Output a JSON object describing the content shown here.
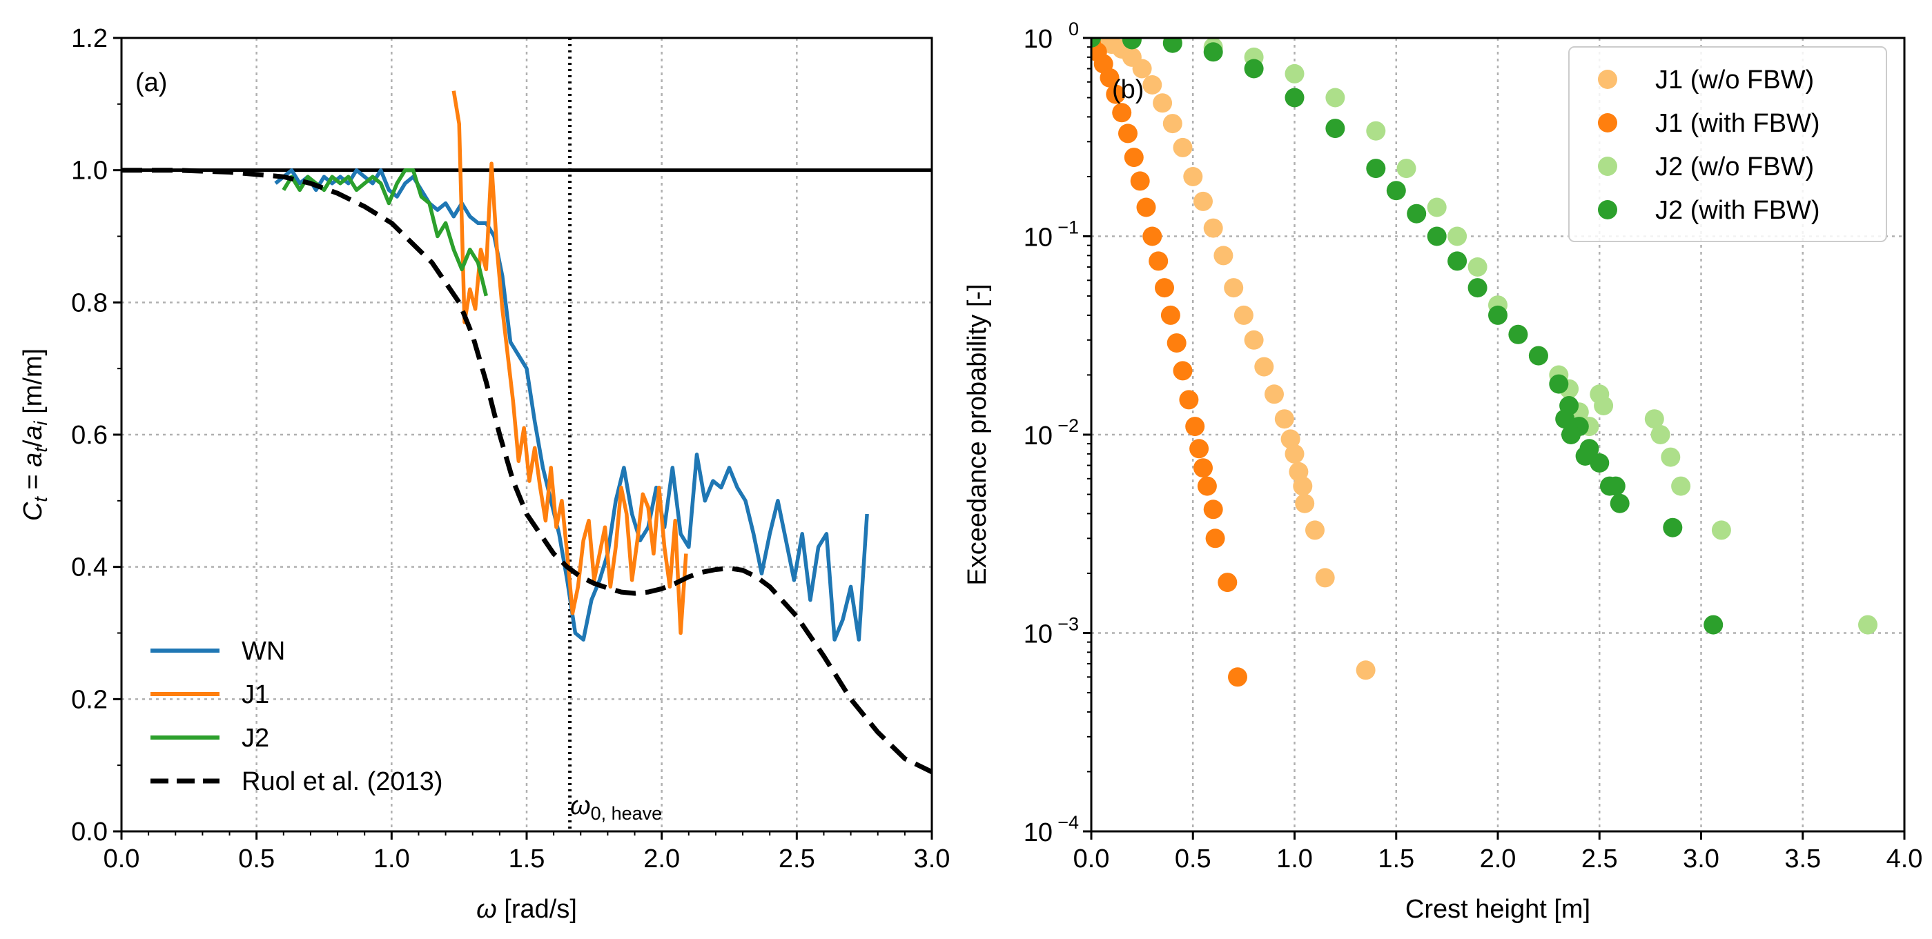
{
  "chart_data": [
    {
      "type": "line",
      "panel_label": "(a)",
      "xlabel": "ω [rad/s]",
      "ylabel": "C_t = a_t/a_i [m/m]",
      "xlim": [
        0.0,
        3.0
      ],
      "ylim": [
        0.0,
        1.2
      ],
      "xticks": [
        0.0,
        0.5,
        1.0,
        1.5,
        2.0,
        2.5,
        3.0
      ],
      "xtick_labels": [
        "0.0",
        "0.5",
        "1.0",
        "1.5",
        "2.0",
        "2.5",
        "3.0"
      ],
      "yticks": [
        0.0,
        0.2,
        0.4,
        0.6,
        0.8,
        1.0,
        1.2
      ],
      "ytick_labels": [
        "0.0",
        "0.2",
        "0.4",
        "0.6",
        "0.8",
        "1.0",
        "1.2"
      ],
      "grid": true,
      "legend_position": "lower-left",
      "reference_lines": [
        {
          "orientation": "horizontal",
          "value": 1.0,
          "style": "solid"
        },
        {
          "orientation": "vertical",
          "value": 1.66,
          "style": "dotted",
          "label": "ω0, heave"
        }
      ],
      "series": [
        {
          "name": "WN",
          "color": "#1f77b4",
          "style": "solid",
          "x": [
            0.57,
            0.6,
            0.63,
            0.66,
            0.69,
            0.72,
            0.75,
            0.78,
            0.81,
            0.84,
            0.87,
            0.9,
            0.93,
            0.96,
            0.99,
            1.02,
            1.05,
            1.08,
            1.11,
            1.14,
            1.17,
            1.2,
            1.23,
            1.26,
            1.29,
            1.32,
            1.35,
            1.38,
            1.41,
            1.44,
            1.47,
            1.5,
            1.53,
            1.56,
            1.59,
            1.62,
            1.65,
            1.68,
            1.71,
            1.74,
            1.77,
            1.8,
            1.83,
            1.86,
            1.89,
            1.92,
            1.95,
            1.98,
            2.01,
            2.04,
            2.07,
            2.1,
            2.13,
            2.16,
            2.19,
            2.22,
            2.25,
            2.28,
            2.31,
            2.34,
            2.37,
            2.4,
            2.43,
            2.46,
            2.49,
            2.52,
            2.55,
            2.58,
            2.61,
            2.64,
            2.67,
            2.7,
            2.73,
            2.76
          ],
          "y": [
            0.98,
            0.99,
            1.0,
            0.98,
            0.99,
            0.97,
            0.99,
            0.98,
            0.99,
            0.98,
            1.0,
            0.99,
            0.98,
            1.0,
            0.97,
            0.96,
            0.98,
            0.99,
            0.97,
            0.95,
            0.94,
            0.95,
            0.93,
            0.95,
            0.93,
            0.92,
            0.92,
            0.9,
            0.84,
            0.74,
            0.72,
            0.7,
            0.62,
            0.55,
            0.5,
            0.45,
            0.38,
            0.3,
            0.29,
            0.35,
            0.38,
            0.42,
            0.5,
            0.55,
            0.48,
            0.44,
            0.46,
            0.52,
            0.46,
            0.55,
            0.45,
            0.43,
            0.57,
            0.5,
            0.53,
            0.52,
            0.55,
            0.52,
            0.5,
            0.45,
            0.39,
            0.45,
            0.5,
            0.44,
            0.38,
            0.45,
            0.35,
            0.43,
            0.45,
            0.29,
            0.32,
            0.37,
            0.29,
            0.48
          ]
        },
        {
          "name": "J1",
          "color": "#ff7f0e",
          "style": "solid",
          "x": [
            1.23,
            1.25,
            1.27,
            1.29,
            1.31,
            1.33,
            1.35,
            1.37,
            1.39,
            1.41,
            1.43,
            1.45,
            1.47,
            1.49,
            1.51,
            1.53,
            1.55,
            1.57,
            1.59,
            1.61,
            1.63,
            1.65,
            1.67,
            1.69,
            1.71,
            1.73,
            1.75,
            1.77,
            1.79,
            1.81,
            1.83,
            1.85,
            1.87,
            1.89,
            1.91,
            1.93,
            1.95,
            1.97,
            1.99,
            2.01,
            2.03,
            2.05,
            2.07,
            2.09
          ],
          "y": [
            1.12,
            1.07,
            0.77,
            0.82,
            0.79,
            0.88,
            0.85,
            1.01,
            0.88,
            0.79,
            0.72,
            0.65,
            0.56,
            0.61,
            0.53,
            0.58,
            0.52,
            0.47,
            0.55,
            0.46,
            0.5,
            0.42,
            0.33,
            0.37,
            0.44,
            0.47,
            0.38,
            0.42,
            0.46,
            0.37,
            0.43,
            0.52,
            0.48,
            0.38,
            0.44,
            0.51,
            0.49,
            0.42,
            0.52,
            0.43,
            0.37,
            0.47,
            0.3,
            0.42
          ]
        },
        {
          "name": "J2",
          "color": "#2ca02c",
          "style": "solid",
          "x": [
            0.6,
            0.63,
            0.66,
            0.69,
            0.72,
            0.75,
            0.78,
            0.81,
            0.84,
            0.87,
            0.9,
            0.93,
            0.96,
            0.99,
            1.02,
            1.05,
            1.08,
            1.11,
            1.14,
            1.17,
            1.2,
            1.23,
            1.26,
            1.29,
            1.32,
            1.35
          ],
          "y": [
            0.97,
            0.99,
            0.97,
            0.99,
            0.98,
            0.97,
            0.99,
            0.98,
            0.99,
            0.97,
            0.98,
            0.99,
            0.98,
            0.95,
            0.98,
            1.0,
            1.0,
            0.96,
            0.95,
            0.9,
            0.92,
            0.88,
            0.85,
            0.88,
            0.86,
            0.81
          ]
        },
        {
          "name": "Ruol et al. (2013)",
          "color": "#000000",
          "style": "dashed",
          "x": [
            0.0,
            0.2,
            0.4,
            0.6,
            0.7,
            0.8,
            0.9,
            1.0,
            1.05,
            1.1,
            1.15,
            1.2,
            1.25,
            1.3,
            1.35,
            1.4,
            1.45,
            1.5,
            1.55,
            1.6,
            1.65,
            1.7,
            1.75,
            1.8,
            1.85,
            1.9,
            1.95,
            2.0,
            2.05,
            2.1,
            2.15,
            2.2,
            2.25,
            2.3,
            2.35,
            2.4,
            2.5,
            2.6,
            2.7,
            2.8,
            2.9,
            3.0
          ],
          "y": [
            1.0,
            1.0,
            0.997,
            0.99,
            0.98,
            0.965,
            0.945,
            0.92,
            0.9,
            0.88,
            0.86,
            0.83,
            0.8,
            0.75,
            0.68,
            0.6,
            0.53,
            0.48,
            0.45,
            0.42,
            0.4,
            0.385,
            0.375,
            0.368,
            0.362,
            0.36,
            0.362,
            0.367,
            0.375,
            0.385,
            0.392,
            0.396,
            0.398,
            0.395,
            0.385,
            0.37,
            0.325,
            0.265,
            0.2,
            0.15,
            0.11,
            0.09
          ]
        }
      ]
    },
    {
      "type": "scatter",
      "panel_label": "(b)",
      "xlabel": "Crest height [m]",
      "ylabel": "Exceedance probability [-]",
      "xscale": "linear",
      "yscale": "log",
      "xlim": [
        0.0,
        4.0
      ],
      "ylim": [
        0.0001,
        1
      ],
      "xticks": [
        0.0,
        0.5,
        1.0,
        1.5,
        2.0,
        2.5,
        3.0,
        3.5,
        4.0
      ],
      "xtick_labels": [
        "0.0",
        "0.5",
        "1.0",
        "1.5",
        "2.0",
        "2.5",
        "3.0",
        "3.5",
        "4.0"
      ],
      "ytick_exponents": [
        -4,
        -3,
        -2,
        -1,
        0
      ],
      "ytick_labels": [
        "10",
        "10",
        "10",
        "10",
        "10"
      ],
      "ytick_label_exponents": [
        "−4",
        "−3",
        "−2",
        "−1",
        "0"
      ],
      "grid": true,
      "legend_position": "top-right",
      "series": [
        {
          "name": "J1 (w/o FBW)",
          "color": "#fdbf6f",
          "points": [
            [
              0.0,
              1.0
            ],
            [
              0.05,
              0.97
            ],
            [
              0.1,
              0.93
            ],
            [
              0.15,
              0.88
            ],
            [
              0.2,
              0.8
            ],
            [
              0.25,
              0.7
            ],
            [
              0.3,
              0.58
            ],
            [
              0.35,
              0.47
            ],
            [
              0.4,
              0.37
            ],
            [
              0.45,
              0.28
            ],
            [
              0.5,
              0.2
            ],
            [
              0.55,
              0.15
            ],
            [
              0.6,
              0.11
            ],
            [
              0.65,
              0.08
            ],
            [
              0.7,
              0.055
            ],
            [
              0.75,
              0.04
            ],
            [
              0.8,
              0.03
            ],
            [
              0.85,
              0.022
            ],
            [
              0.9,
              0.016
            ],
            [
              0.95,
              0.012
            ],
            [
              0.98,
              0.0095
            ],
            [
              1.0,
              0.008
            ],
            [
              1.02,
              0.0065
            ],
            [
              1.04,
              0.0055
            ],
            [
              1.05,
              0.0045
            ],
            [
              1.1,
              0.0033
            ],
            [
              1.15,
              0.0019
            ],
            [
              1.35,
              0.00065
            ]
          ]
        },
        {
          "name": "J1 (with FBW)",
          "color": "#ff7f0e",
          "points": [
            [
              0.0,
              0.95
            ],
            [
              0.03,
              0.85
            ],
            [
              0.06,
              0.74
            ],
            [
              0.09,
              0.63
            ],
            [
              0.12,
              0.52
            ],
            [
              0.15,
              0.42
            ],
            [
              0.18,
              0.33
            ],
            [
              0.21,
              0.25
            ],
            [
              0.24,
              0.19
            ],
            [
              0.27,
              0.14
            ],
            [
              0.3,
              0.1
            ],
            [
              0.33,
              0.075
            ],
            [
              0.36,
              0.055
            ],
            [
              0.39,
              0.04
            ],
            [
              0.42,
              0.029
            ],
            [
              0.45,
              0.021
            ],
            [
              0.48,
              0.015
            ],
            [
              0.51,
              0.011
            ],
            [
              0.53,
              0.0085
            ],
            [
              0.55,
              0.0068
            ],
            [
              0.57,
              0.0055
            ],
            [
              0.6,
              0.0042
            ],
            [
              0.61,
              0.003
            ],
            [
              0.67,
              0.0018
            ],
            [
              0.72,
              0.0006
            ]
          ]
        },
        {
          "name": "J2 (w/o FBW)",
          "color": "#addf8a",
          "points": [
            [
              0.0,
              1.0
            ],
            [
              0.2,
              0.98
            ],
            [
              0.4,
              0.95
            ],
            [
              0.6,
              0.9
            ],
            [
              0.8,
              0.8
            ],
            [
              1.0,
              0.66
            ],
            [
              1.2,
              0.5
            ],
            [
              1.4,
              0.34
            ],
            [
              1.55,
              0.22
            ],
            [
              1.7,
              0.14
            ],
            [
              1.8,
              0.1
            ],
            [
              1.9,
              0.07
            ],
            [
              2.0,
              0.045
            ],
            [
              2.1,
              0.032
            ],
            [
              2.2,
              0.025
            ],
            [
              2.3,
              0.02
            ],
            [
              2.35,
              0.017
            ],
            [
              2.4,
              0.013
            ],
            [
              2.45,
              0.011
            ],
            [
              2.5,
              0.016
            ],
            [
              2.52,
              0.014
            ],
            [
              2.77,
              0.012
            ],
            [
              2.8,
              0.01
            ],
            [
              2.85,
              0.0077
            ],
            [
              2.9,
              0.0055
            ],
            [
              3.1,
              0.0033
            ],
            [
              3.82,
              0.0011
            ]
          ]
        },
        {
          "name": "J2 (with FBW)",
          "color": "#2ca02c",
          "points": [
            [
              0.0,
              1.0
            ],
            [
              0.2,
              0.98
            ],
            [
              0.4,
              0.94
            ],
            [
              0.6,
              0.85
            ],
            [
              0.8,
              0.7
            ],
            [
              1.0,
              0.5
            ],
            [
              1.2,
              0.35
            ],
            [
              1.4,
              0.22
            ],
            [
              1.5,
              0.17
            ],
            [
              1.6,
              0.13
            ],
            [
              1.7,
              0.1
            ],
            [
              1.8,
              0.075
            ],
            [
              1.9,
              0.055
            ],
            [
              2.0,
              0.04
            ],
            [
              2.1,
              0.032
            ],
            [
              2.2,
              0.025
            ],
            [
              2.3,
              0.018
            ],
            [
              2.35,
              0.014
            ],
            [
              2.4,
              0.011
            ],
            [
              2.45,
              0.0085
            ],
            [
              2.5,
              0.0072
            ],
            [
              2.55,
              0.0055
            ],
            [
              2.6,
              0.0045
            ],
            [
              2.58,
              0.0055
            ],
            [
              2.43,
              0.0078
            ],
            [
              2.36,
              0.01
            ],
            [
              2.33,
              0.012
            ],
            [
              2.86,
              0.0034
            ],
            [
              3.06,
              0.0011
            ]
          ]
        }
      ]
    }
  ]
}
